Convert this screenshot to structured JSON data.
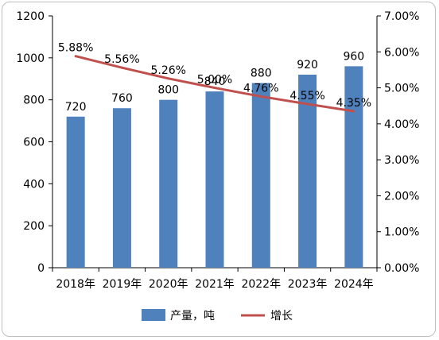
{
  "chart_data": {
    "type": "bar",
    "categories": [
      "2018年",
      "2019年",
      "2020年",
      "2021年",
      "2022年",
      "2023年",
      "2024年"
    ],
    "series": [
      {
        "name": "产量，吨",
        "type": "bar",
        "axis": "left",
        "values": [
          720,
          760,
          800,
          840,
          880,
          920,
          960
        ],
        "labels": [
          "720",
          "760",
          "800",
          "840",
          "880",
          "920",
          "960"
        ],
        "color": "#4f81bd"
      },
      {
        "name": "增长",
        "type": "line",
        "axis": "right",
        "values": [
          5.88,
          5.56,
          5.26,
          5.0,
          4.76,
          4.55,
          4.35
        ],
        "labels": [
          "5.88%",
          "5.56%",
          "5.26%",
          "5.00%",
          "4.76%",
          "4.55%",
          "4.35%"
        ],
        "color": "#c0504d"
      }
    ],
    "y_left": {
      "min": 0,
      "max": 1200,
      "ticks": [
        "0",
        "200",
        "400",
        "600",
        "800",
        "1000",
        "1200"
      ]
    },
    "y_right": {
      "min": 0,
      "max": 7,
      "ticks": [
        "0.00%",
        "1.00%",
        "2.00%",
        "3.00%",
        "4.00%",
        "5.00%",
        "6.00%",
        "7.00%"
      ]
    },
    "legend": {
      "position": "bottom"
    },
    "grid": false
  }
}
